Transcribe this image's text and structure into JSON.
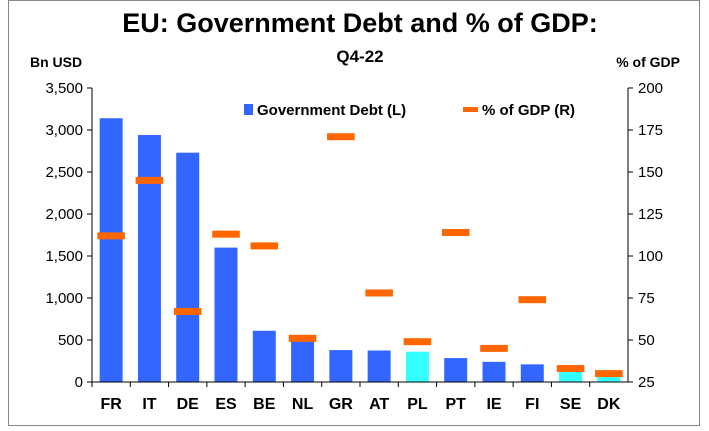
{
  "chart_data": {
    "type": "bar",
    "title_line1": "EU: Government Debt and % of GDP:",
    "title_line2": "Q4-22",
    "ylabel_left": "Bn USD",
    "ylabel_right": "% of GDP",
    "categories": [
      "FR",
      "IT",
      "DE",
      "ES",
      "BE",
      "NL",
      "GR",
      "AT",
      "PL",
      "PT",
      "IE",
      "FI",
      "SE",
      "DK"
    ],
    "series": [
      {
        "name": "Government Debt (L)",
        "axis": "left",
        "kind": "bar",
        "values": [
          3140,
          2940,
          2730,
          1600,
          610,
          500,
          380,
          375,
          360,
          285,
          240,
          210,
          130,
          70
        ]
      },
      {
        "name": "% of GDP (R)",
        "axis": "right",
        "kind": "marker",
        "values": [
          112,
          145,
          67,
          113,
          106,
          51,
          171,
          78,
          49,
          114,
          45,
          74,
          33,
          30
        ]
      }
    ],
    "bar_colors": [
      "#3366ff",
      "#3366ff",
      "#3366ff",
      "#3366ff",
      "#3366ff",
      "#3366ff",
      "#3366ff",
      "#3366ff",
      "#33ffff",
      "#3366ff",
      "#3366ff",
      "#3366ff",
      "#33ffff",
      "#33ffff"
    ],
    "marker_color": "#ff6600",
    "y_left": {
      "min": 0,
      "max": 3500,
      "ticks": [
        0,
        500,
        1000,
        1500,
        2000,
        2500,
        3000,
        3500
      ],
      "tick_labels": [
        "0",
        "500",
        "1,000",
        "1,500",
        "2,000",
        "2,500",
        "3,000",
        "3,500"
      ]
    },
    "y_right": {
      "min": 25,
      "max": 200,
      "ticks": [
        25,
        50,
        75,
        100,
        125,
        150,
        175,
        200
      ],
      "tick_labels": [
        "25",
        "50",
        "75",
        "100",
        "125",
        "150",
        "175",
        "200"
      ]
    },
    "grid": false,
    "legend_position": "top-right"
  }
}
